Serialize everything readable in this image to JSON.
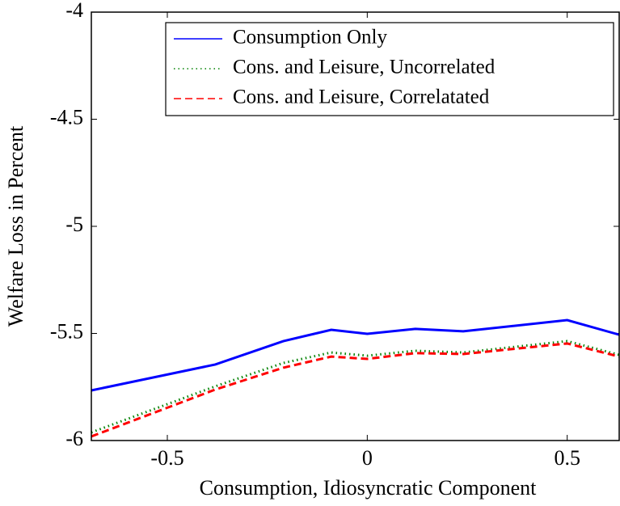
{
  "chart_data": {
    "type": "line",
    "x_label": "Consumption, Idiosyncratic Component",
    "y_label": "Welfare Loss in Percent",
    "x": [
      -0.69,
      -0.38,
      -0.21,
      -0.09,
      0,
      0.12,
      0.24,
      0.5,
      0.63
    ],
    "series": [
      {
        "name": "Consumption Only",
        "color": "#0000ff",
        "dash": "solid",
        "values": [
          -5.766,
          -5.645,
          -5.536,
          -5.483,
          -5.502,
          -5.479,
          -5.49,
          -5.438,
          -5.506
        ]
      },
      {
        "name": "Cons. and Leisure, Uncorrelated",
        "color": "#008000",
        "dash": "dotted",
        "values": [
          -5.962,
          -5.747,
          -5.638,
          -5.589,
          -5.604,
          -5.581,
          -5.589,
          -5.536,
          -5.6
        ]
      },
      {
        "name": "Cons. and Leisure, Correlatated",
        "color": "#ff0000",
        "dash": "dashed",
        "values": [
          -5.981,
          -5.762,
          -5.66,
          -5.608,
          -5.619,
          -5.592,
          -5.596,
          -5.547,
          -5.608
        ]
      }
    ],
    "xlim": [
      -0.69,
      0.63
    ],
    "xticks": [
      -0.5,
      0,
      0.5
    ],
    "ylim": [
      -6,
      -4
    ],
    "yticks": [
      -6,
      -5.5,
      -5,
      -4.5,
      -4
    ],
    "legend": "top-right"
  }
}
